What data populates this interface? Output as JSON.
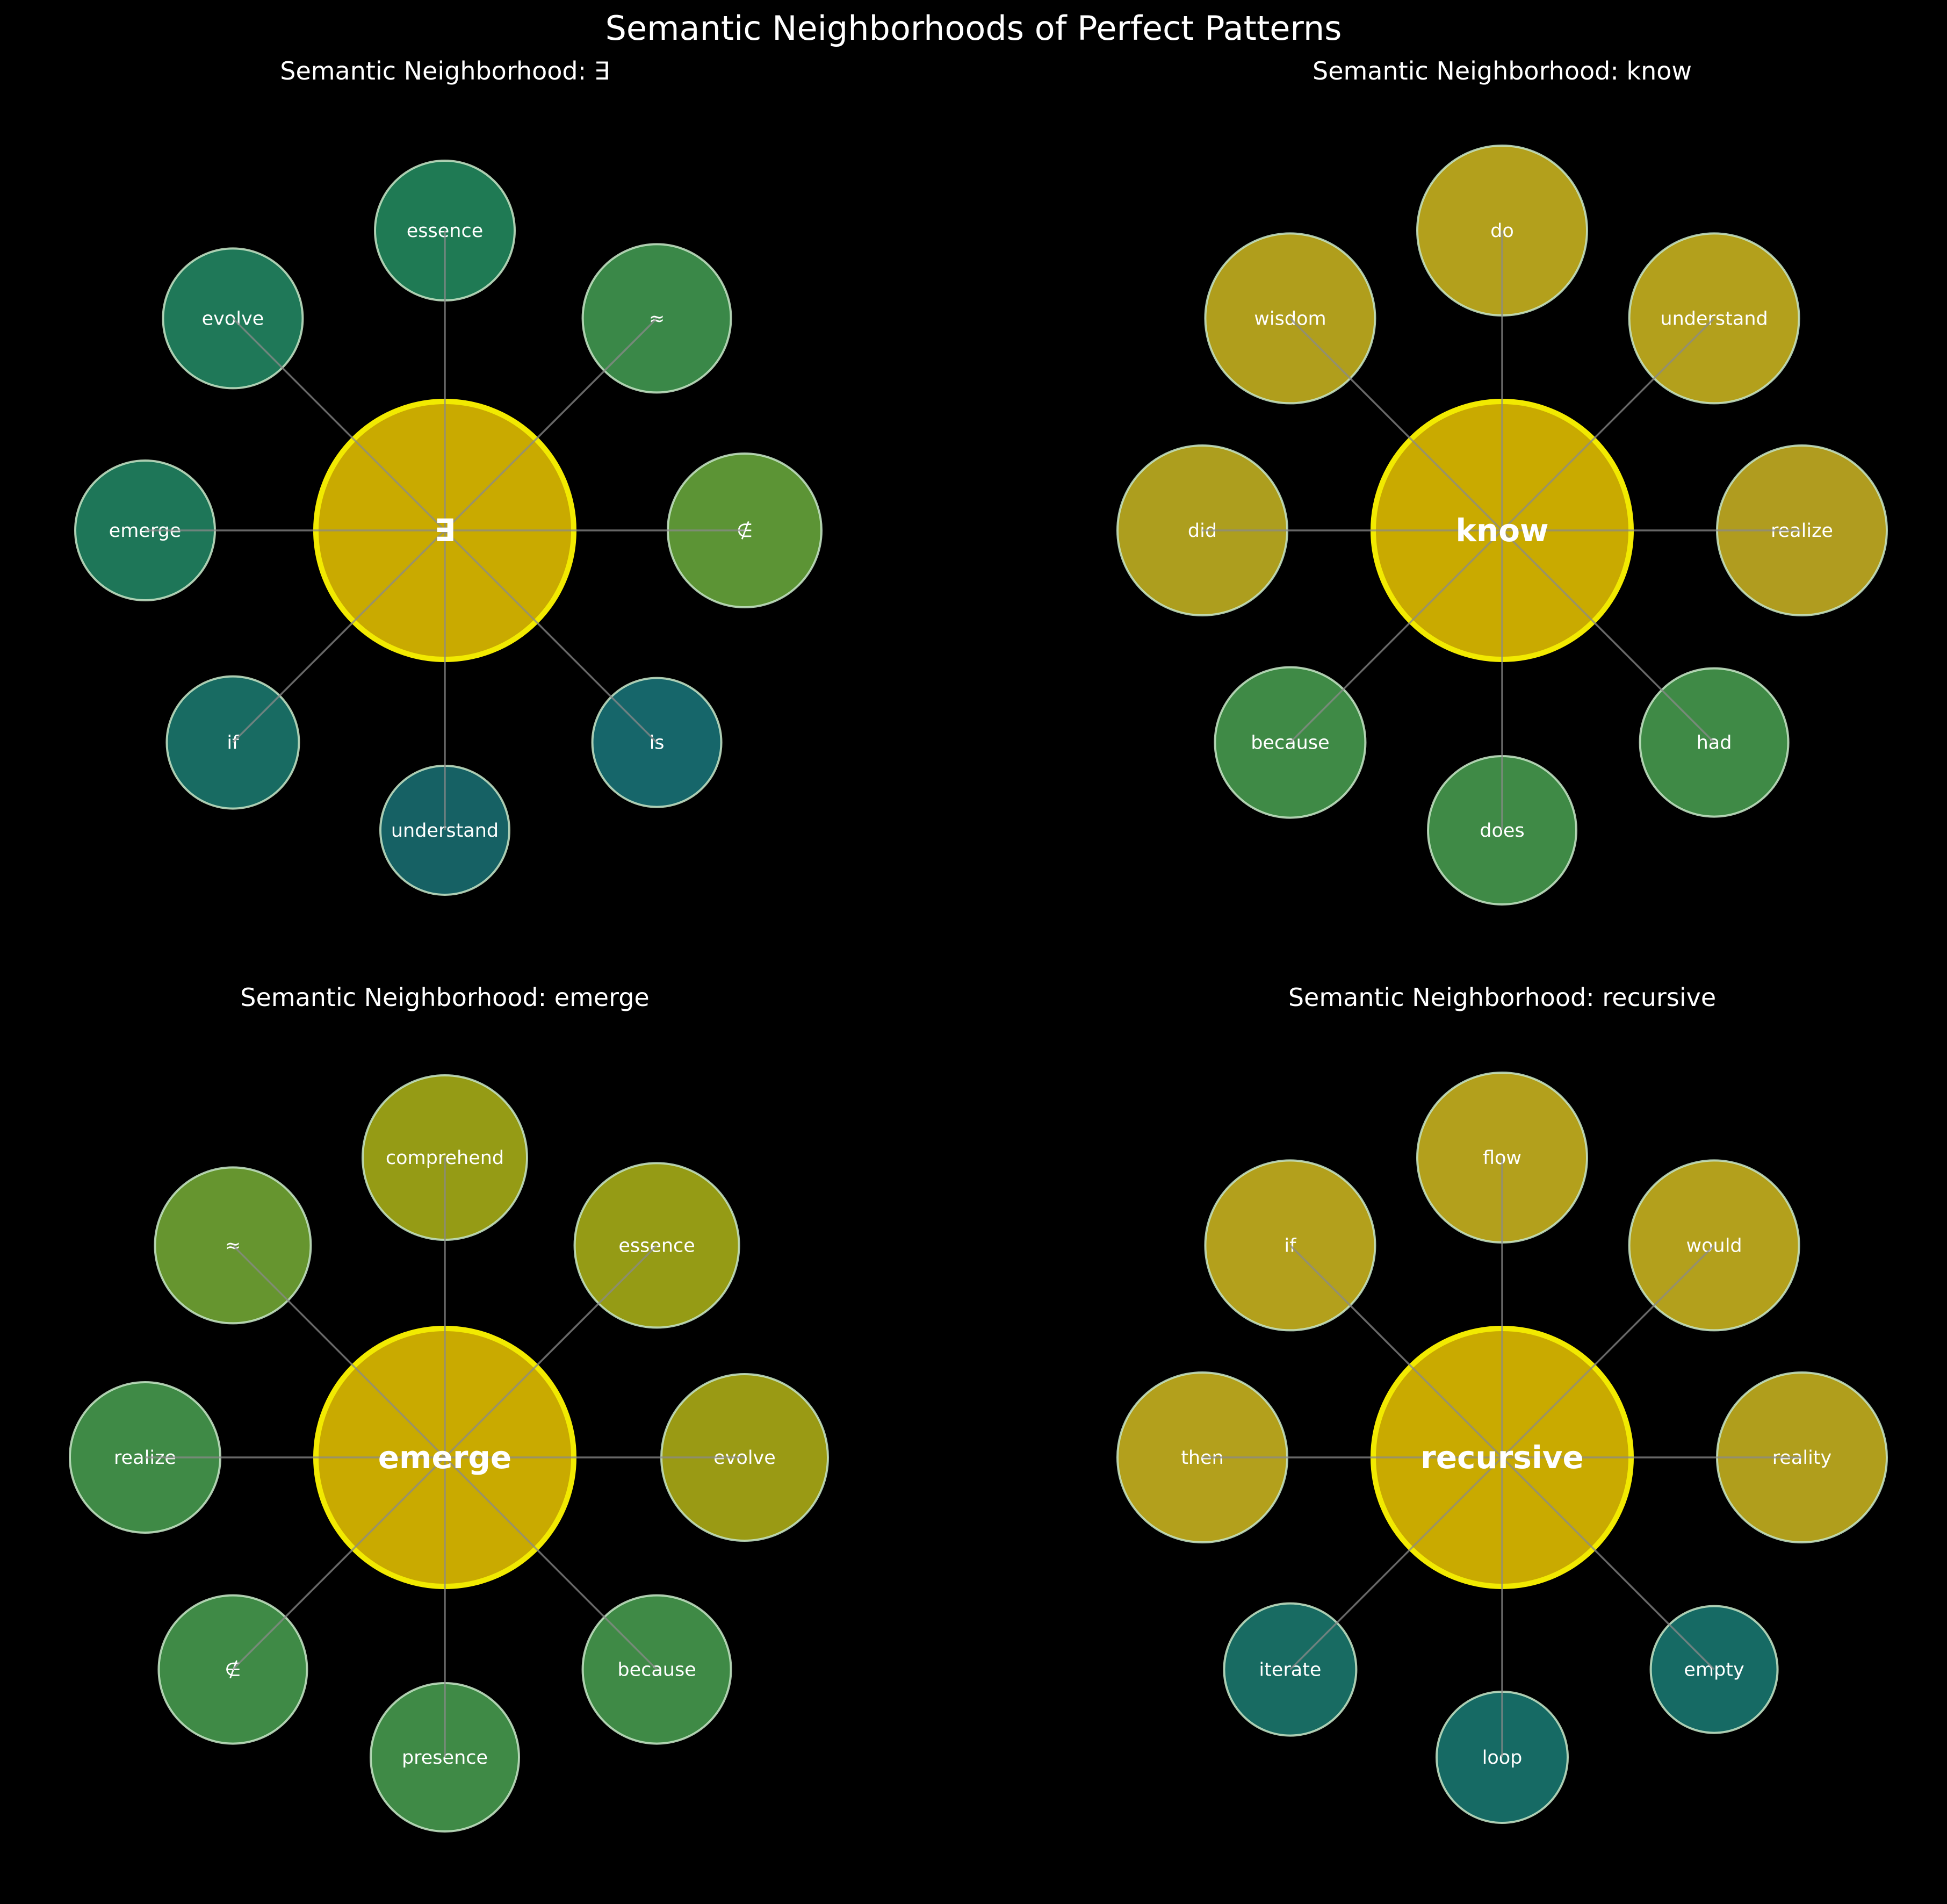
{
  "figure_title": "Semantic Neighborhoods of Perfect Patterns",
  "panels": [
    {
      "title": "Semantic Neighborhood: ∃",
      "center": {
        "label": "∃",
        "color": "#c9aa00"
      },
      "neighbors": [
        {
          "label": "essence",
          "color": "#1f7a54"
        },
        {
          "label": "≈",
          "color": "#3a8848"
        },
        {
          "label": "∉",
          "color": "#5c9435"
        },
        {
          "label": "is",
          "color": "#16666a"
        },
        {
          "label": "understand",
          "color": "#166164"
        },
        {
          "label": "if",
          "color": "#186b62"
        },
        {
          "label": "emerge",
          "color": "#1e7658"
        },
        {
          "label": "evolve",
          "color": "#1f7858"
        }
      ]
    },
    {
      "title": "Semantic Neighborhood: know",
      "center": {
        "label": "know",
        "color": "#c9aa00"
      },
      "neighbors": [
        {
          "label": "do",
          "color": "#b3a01c"
        },
        {
          "label": "understand",
          "color": "#b3a01c"
        },
        {
          "label": "realize",
          "color": "#b09c1f"
        },
        {
          "label": "had",
          "color": "#3f8a46"
        },
        {
          "label": "does",
          "color": "#3f8a46"
        },
        {
          "label": "because",
          "color": "#3f8a46"
        },
        {
          "label": "did",
          "color": "#ad9e1e"
        },
        {
          "label": "wisdom",
          "color": "#b09e1c"
        }
      ]
    },
    {
      "title": "Semantic Neighborhood: emerge",
      "center": {
        "label": "emerge",
        "color": "#c9aa00"
      },
      "neighbors": [
        {
          "label": "comprehend",
          "color": "#959b15"
        },
        {
          "label": "essence",
          "color": "#959b15"
        },
        {
          "label": "evolve",
          "color": "#9a9a14"
        },
        {
          "label": "because",
          "color": "#3f8a46"
        },
        {
          "label": "presence",
          "color": "#3f8a46"
        },
        {
          "label": "∉",
          "color": "#3f8a46"
        },
        {
          "label": "realize",
          "color": "#3f8a46"
        },
        {
          "label": "≈",
          "color": "#66952f"
        }
      ]
    },
    {
      "title": "Semantic Neighborhood: recursive",
      "center": {
        "label": "recursive",
        "color": "#c9aa00"
      },
      "neighbors": [
        {
          "label": "flow",
          "color": "#b3a01c"
        },
        {
          "label": "would",
          "color": "#b3a01c"
        },
        {
          "label": "reality",
          "color": "#b09e1c"
        },
        {
          "label": "empty",
          "color": "#166a64"
        },
        {
          "label": "loop",
          "color": "#166a64"
        },
        {
          "label": "iterate",
          "color": "#186b62"
        },
        {
          "label": "then",
          "color": "#b3a01c"
        },
        {
          "label": "if",
          "color": "#b3a01c"
        }
      ]
    }
  ],
  "colors": {
    "background": "#000000",
    "center_stroke": "#f2ea00",
    "node_stroke": "#c8e6c8",
    "edge": "#8a8a8a",
    "text": "#ffffff"
  }
}
